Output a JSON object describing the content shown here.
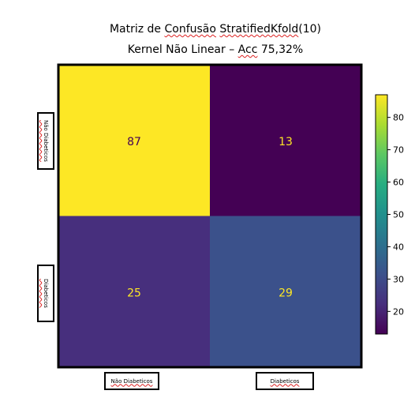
{
  "title_line1_parts": [
    "Matriz de ",
    "Confusão",
    " ",
    "StratifiedKfold",
    "(10)"
  ],
  "title_line2_parts": [
    "Kernel Não Linear – ",
    "Acc",
    " 75,32%"
  ],
  "chart_data": {
    "type": "heatmap",
    "rows": [
      "Não Diabeticos",
      "Diabeticos"
    ],
    "cols": [
      "Não Diabeticos",
      "Diabeticos"
    ],
    "values": [
      [
        87,
        13
      ],
      [
        25,
        29
      ]
    ],
    "colormap": "viridis",
    "colorbar": {
      "min": 13,
      "max": 87,
      "ticks": [
        20,
        30,
        40,
        50,
        60,
        70,
        80
      ]
    }
  },
  "colors": {
    "cell_87": "#fde725",
    "cell_13": "#440154",
    "cell_25": "#472f7d",
    "cell_29": "#3b518b",
    "text_on_bright": "#440154",
    "text_on_dark": "#fde725"
  }
}
